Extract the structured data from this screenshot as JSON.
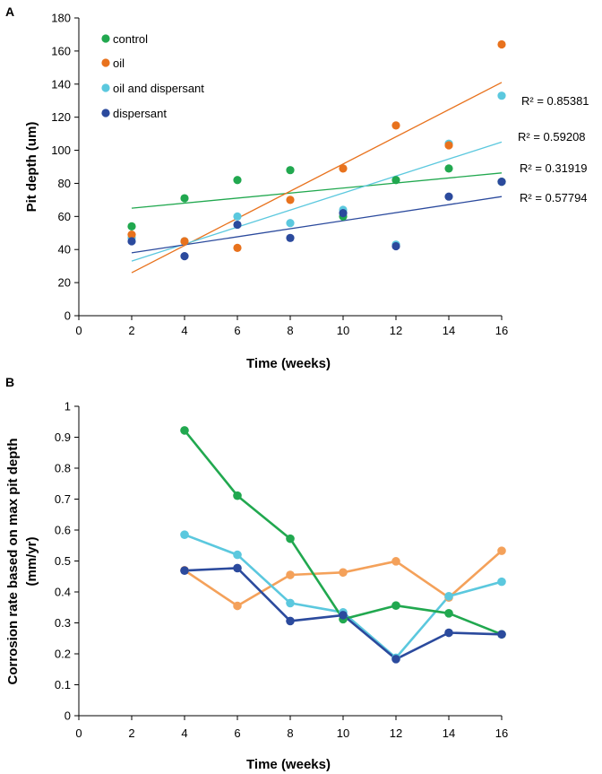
{
  "panels": {
    "A": {
      "label": "A"
    },
    "B": {
      "label": "B"
    }
  },
  "colors": {
    "control": "#21a84f",
    "oil_A": "#e8721d",
    "oil_B": "#f4a15a",
    "oil_and_dispersant": "#5bc8de",
    "dispersant": "#2b4a9d",
    "axis": "#000000"
  },
  "chart_data": [
    {
      "type": "scatter",
      "panel": "A",
      "title": "",
      "xlabel": "Time (weeks)",
      "ylabel": "Pit depth (um)",
      "xlim": [
        0,
        16
      ],
      "ylim": [
        0,
        180
      ],
      "xticks": [
        0,
        2,
        4,
        6,
        8,
        10,
        12,
        14,
        16
      ],
      "yticks": [
        0,
        20,
        40,
        60,
        80,
        100,
        120,
        140,
        160,
        180
      ],
      "legend_position": "top-left",
      "series": [
        {
          "key": "control",
          "name": "control",
          "colorKey": "control",
          "x": [
            2,
            4,
            6,
            8,
            10,
            12,
            14,
            16
          ],
          "values": [
            54,
            71,
            82,
            88,
            60,
            82,
            89,
            81
          ],
          "trend": [
            65.0,
            86.3
          ],
          "r2": "R² = 0.31919"
        },
        {
          "key": "oil",
          "name": "oil",
          "colorKey": "oil_A",
          "x": [
            2,
            4,
            6,
            8,
            10,
            12,
            14,
            16
          ],
          "values": [
            49,
            45,
            41,
            70,
            89,
            115,
            103,
            164
          ],
          "trend": [
            26.0,
            141.0
          ],
          "r2": "R² = 0.85381"
        },
        {
          "key": "oil_and_dispersant",
          "name": "oil and dispersant",
          "colorKey": "oil_and_dispersant",
          "x": [
            2,
            4,
            6,
            8,
            10,
            12,
            14,
            16
          ],
          "values": [
            47,
            45,
            60,
            56,
            64,
            43,
            104,
            133
          ],
          "trend": [
            33.0,
            105.0
          ],
          "r2": "R² = 0.59208"
        },
        {
          "key": "dispersant",
          "name": "dispersant",
          "colorKey": "dispersant",
          "x": [
            2,
            4,
            6,
            8,
            10,
            12,
            14,
            16
          ],
          "values": [
            45,
            36,
            55,
            47,
            62,
            42,
            72,
            81
          ],
          "trend": [
            38.0,
            72.0
          ],
          "r2": "R² = 0.57794"
        }
      ]
    },
    {
      "type": "line",
      "panel": "B",
      "title": "",
      "xlabel": "Time (weeks)",
      "ylabel": "Corrosion rate based on max pit depth (mm/yr)",
      "ylabel_lines": [
        "Corrosion rate based on max pit depth",
        "(mm/yr)"
      ],
      "xlim": [
        0,
        16
      ],
      "ylim": [
        0,
        1
      ],
      "xticks": [
        0,
        2,
        4,
        6,
        8,
        10,
        12,
        14,
        16
      ],
      "yticks": [
        0,
        0.1,
        0.2,
        0.3,
        0.4,
        0.5,
        0.6,
        0.7,
        0.8,
        0.9,
        1
      ],
      "series": [
        {
          "key": "control",
          "name": "control",
          "colorKey": "control",
          "x": [
            4,
            6,
            8,
            10,
            12,
            14,
            16
          ],
          "values": [
            0.922,
            0.711,
            0.572,
            0.312,
            0.356,
            0.331,
            0.263
          ]
        },
        {
          "key": "oil",
          "name": "oil",
          "colorKey": "oil_B",
          "x": [
            4,
            6,
            8,
            10,
            12,
            14,
            16
          ],
          "values": [
            0.47,
            0.355,
            0.455,
            0.463,
            0.499,
            0.382,
            0.533
          ]
        },
        {
          "key": "oil_and_dispersant",
          "name": "oil and dispersant",
          "colorKey": "oil_and_dispersant",
          "x": [
            4,
            6,
            8,
            10,
            12,
            14,
            16
          ],
          "values": [
            0.585,
            0.52,
            0.364,
            0.334,
            0.187,
            0.386,
            0.433
          ]
        },
        {
          "key": "dispersant",
          "name": "dispersant",
          "colorKey": "dispersant",
          "x": [
            4,
            6,
            8,
            10,
            12,
            14,
            16
          ],
          "values": [
            0.469,
            0.477,
            0.306,
            0.325,
            0.183,
            0.268,
            0.263
          ]
        }
      ]
    }
  ]
}
